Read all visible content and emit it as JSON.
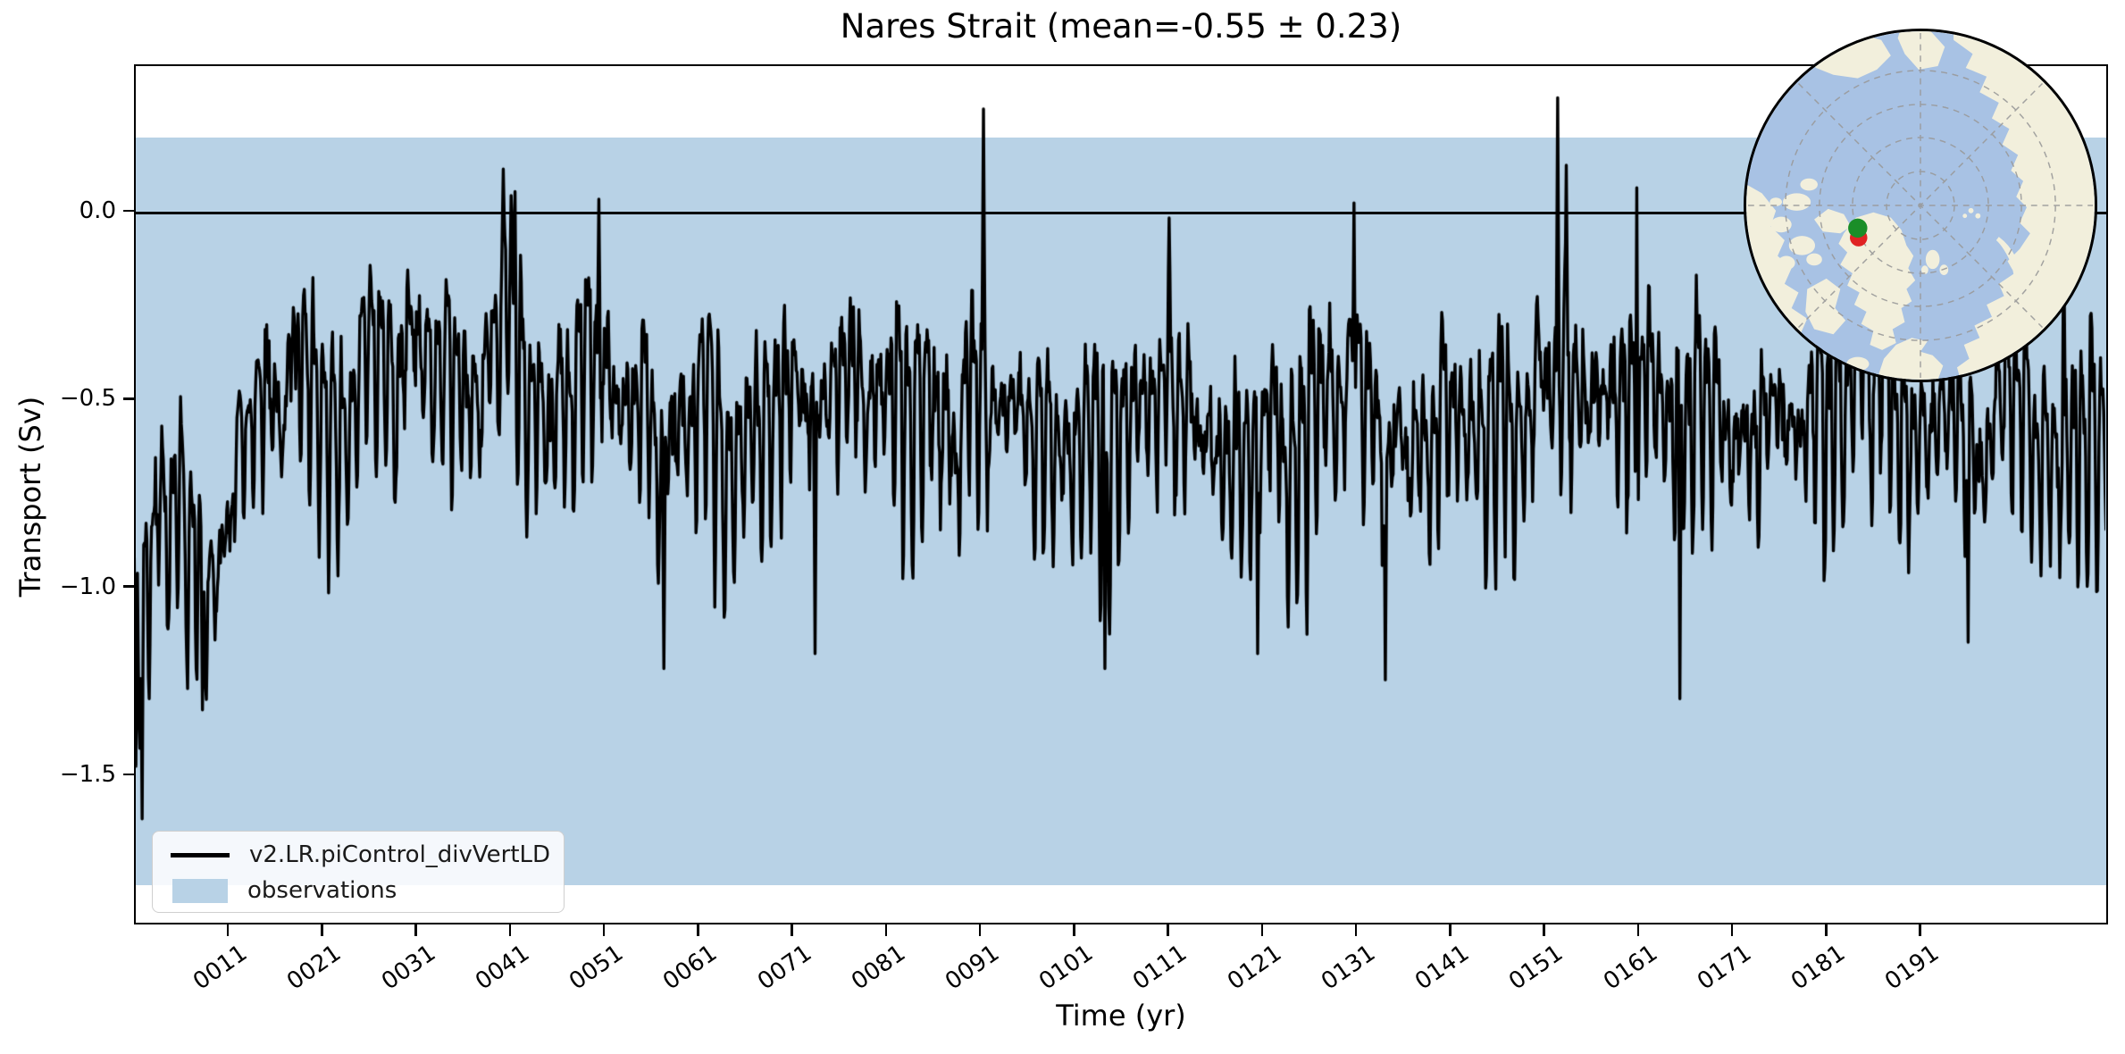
{
  "figure": {
    "title": "Nares Strait (mean=-0.55 ± 0.23)"
  },
  "chart_data": {
    "type": "line",
    "title": "Nares Strait (mean=-0.55 ± 0.23)",
    "xlabel": "Time (yr)",
    "ylabel": "Transport (Sv)",
    "xlim_years": [
      1,
      211
    ],
    "ylim": [
      -1.9,
      0.39
    ],
    "grid": false,
    "zero_line": 0.0,
    "x_ticks": {
      "years": [
        11,
        21,
        31,
        41,
        51,
        61,
        71,
        81,
        91,
        101,
        111,
        121,
        131,
        141,
        151,
        161,
        171,
        181,
        191
      ],
      "labels": [
        "0011",
        "0021",
        "0031",
        "0041",
        "0051",
        "0061",
        "0071",
        "0081",
        "0091",
        "0101",
        "0111",
        "0121",
        "0131",
        "0141",
        "0151",
        "0161",
        "0171",
        "0181",
        "0191"
      ]
    },
    "y_ticks": {
      "values": [
        0.0,
        -0.5,
        -1.0,
        -1.5
      ],
      "labels": [
        "0.0",
        "−0.5",
        "−1.0",
        "−1.5"
      ]
    },
    "series": [
      {
        "name": "v2.LR.piControl_divVertLD",
        "color": "#000000",
        "line_width": 3.4,
        "sampling": "monthly",
        "mean": -0.55,
        "std": 0.23,
        "anchor_years": [
          1,
          2,
          3.5,
          5,
          6.5,
          8,
          9.5,
          11,
          13,
          15,
          17,
          19,
          21,
          23,
          25,
          27,
          29,
          31,
          33,
          35,
          37,
          39,
          41,
          43,
          45,
          47,
          49,
          51,
          53,
          55,
          57,
          59,
          61,
          63,
          65,
          67,
          69,
          71,
          73,
          75,
          77,
          79,
          81,
          83,
          85,
          87,
          89,
          91,
          93,
          95,
          97,
          99,
          101,
          103,
          105,
          107,
          109,
          111,
          113,
          115,
          117,
          119,
          121,
          123,
          125,
          127,
          129,
          131,
          133,
          135,
          137,
          139,
          141,
          143,
          145,
          147,
          149,
          151,
          153,
          155,
          157,
          159,
          161,
          163,
          165,
          167,
          169,
          171,
          173,
          175,
          177,
          179,
          181,
          183,
          185,
          187,
          189,
          191,
          193,
          195,
          197,
          199,
          201,
          203,
          205,
          207,
          209,
          211
        ],
        "anchor_values": [
          -1.15,
          -1.05,
          -0.88,
          -0.72,
          -0.82,
          -1.0,
          -0.92,
          -0.8,
          -0.7,
          -0.58,
          -0.5,
          -0.45,
          -0.48,
          -0.52,
          -0.45,
          -0.42,
          -0.5,
          -0.45,
          -0.52,
          -0.48,
          -0.42,
          -0.35,
          -0.32,
          -0.5,
          -0.58,
          -0.52,
          -0.45,
          -0.48,
          -0.55,
          -0.5,
          -0.62,
          -0.55,
          -0.5,
          -0.58,
          -0.62,
          -0.55,
          -0.5,
          -0.48,
          -0.6,
          -0.55,
          -0.5,
          -0.55,
          -0.45,
          -0.5,
          -0.58,
          -0.62,
          -0.55,
          -0.48,
          -0.6,
          -0.55,
          -0.58,
          -0.62,
          -0.65,
          -0.58,
          -0.62,
          -0.55,
          -0.65,
          -0.58,
          -0.52,
          -0.55,
          -0.6,
          -0.65,
          -0.52,
          -0.55,
          -0.58,
          -0.52,
          -0.48,
          -0.52,
          -0.6,
          -0.68,
          -0.62,
          -0.55,
          -0.52,
          -0.58,
          -0.62,
          -0.55,
          -0.5,
          -0.42,
          -0.45,
          -0.5,
          -0.55,
          -0.5,
          -0.48,
          -0.52,
          -0.62,
          -0.58,
          -0.52,
          -0.55,
          -0.6,
          -0.55,
          -0.58,
          -0.52,
          -0.55,
          -0.58,
          -0.5,
          -0.52,
          -0.58,
          -0.55,
          -0.52,
          -0.58,
          -0.55,
          -0.52,
          -0.58,
          -0.55,
          -0.6,
          -0.55,
          -0.58,
          -0.55
        ],
        "spike_years": [
          1.25,
          1.9,
          2.7,
          8.3,
          40.3,
          41.6,
          50.5,
          57.4,
          73.5,
          91.4,
          104.3,
          111.2,
          120.6,
          130.8,
          134.2,
          152.5,
          153.4,
          160.9,
          165.5,
          186.3,
          196.2,
          206.3
        ],
        "spike_values": [
          -1.48,
          -1.62,
          -1.3,
          -1.33,
          0.11,
          0.05,
          0.03,
          -1.22,
          -1.18,
          0.27,
          -1.22,
          -0.02,
          -1.18,
          0.02,
          -1.25,
          0.3,
          0.12,
          0.06,
          -1.3,
          -0.08,
          -1.15,
          -0.05
        ],
        "noise_seed": 12345,
        "noise_sd": 0.11
      }
    ],
    "observations_band": {
      "label": "observations",
      "color": "#b8d2e6",
      "value_range": [
        -1.79,
        0.2
      ]
    },
    "legend": {
      "position": "lower left",
      "entries": [
        {
          "label": "v2.LR.piControl_divVertLD",
          "type": "line",
          "color": "#000000"
        },
        {
          "label": "observations",
          "type": "patch",
          "color": "#b8d2e6"
        }
      ]
    }
  },
  "inset_map": {
    "kind": "north-polar-stereographic-locator",
    "ocean_color": "#a8c2e4",
    "land_color": "#f2efdc",
    "graticule_color": "#999999",
    "border_color": "#000000",
    "markers": [
      {
        "name": "location-marker-green",
        "color": "#1a8e28"
      },
      {
        "name": "location-marker-red",
        "color": "#e02323"
      }
    ]
  }
}
